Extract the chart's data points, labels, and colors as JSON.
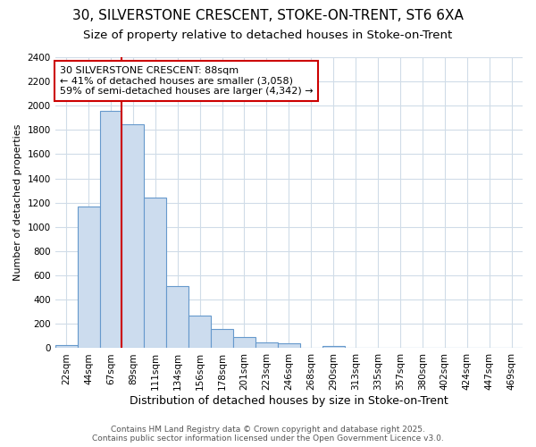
{
  "title1": "30, SILVERSTONE CRESCENT, STOKE-ON-TRENT, ST6 6XA",
  "title2": "Size of property relative to detached houses in Stoke-on-Trent",
  "xlabel": "Distribution of detached houses by size in Stoke-on-Trent",
  "ylabel": "Number of detached properties",
  "bin_labels": [
    "22sqm",
    "44sqm",
    "67sqm",
    "89sqm",
    "111sqm",
    "134sqm",
    "156sqm",
    "178sqm",
    "201sqm",
    "223sqm",
    "246sqm",
    "268sqm",
    "290sqm",
    "313sqm",
    "335sqm",
    "357sqm",
    "380sqm",
    "402sqm",
    "424sqm",
    "447sqm",
    "469sqm"
  ],
  "bar_heights": [
    25,
    1170,
    1960,
    1850,
    1240,
    510,
    270,
    155,
    90,
    50,
    40,
    5,
    15,
    5,
    3,
    3,
    2,
    2,
    2,
    2,
    5
  ],
  "bar_color": "#ccdcee",
  "bar_edge_color": "#6699cc",
  "red_line_color": "#cc0000",
  "red_line_x": 3,
  "annotation_text": "30 SILVERSTONE CRESCENT: 88sqm\n← 41% of detached houses are smaller (3,058)\n59% of semi-detached houses are larger (4,342) →",
  "annotation_box_color": "white",
  "annotation_box_edge_color": "#cc0000",
  "ylim": [
    0,
    2400
  ],
  "yticks": [
    0,
    200,
    400,
    600,
    800,
    1000,
    1200,
    1400,
    1600,
    1800,
    2000,
    2200,
    2400
  ],
  "footer1": "Contains HM Land Registry data © Crown copyright and database right 2025.",
  "footer2": "Contains public sector information licensed under the Open Government Licence v3.0.",
  "bg_color": "#ffffff",
  "grid_color": "#d0dce8",
  "title1_fontsize": 11,
  "title2_fontsize": 9.5,
  "xlabel_fontsize": 9,
  "ylabel_fontsize": 8,
  "tick_fontsize": 7.5,
  "footer_fontsize": 6.5
}
